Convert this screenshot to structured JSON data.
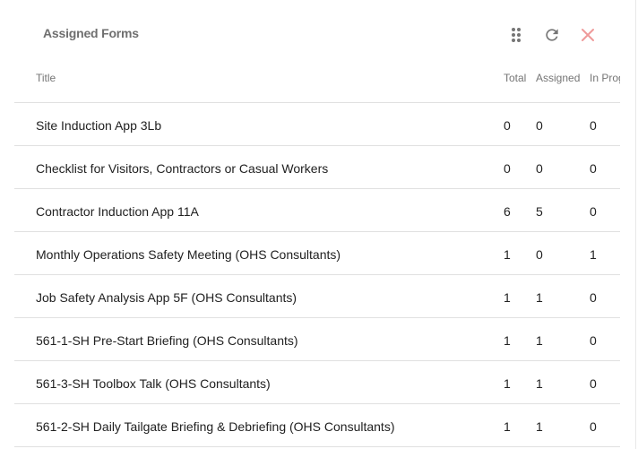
{
  "widget": {
    "title": "Assigned Forms",
    "icons": {
      "drag": "drag-handle-icon",
      "refresh": "refresh-icon",
      "close": "close-icon"
    },
    "colors": {
      "close": "#ef9a9a",
      "icon": "#757575"
    }
  },
  "table": {
    "columns": [
      "Title",
      "Total",
      "Assigned",
      "In Progress"
    ],
    "rows": [
      {
        "title": "Site Induction App 3Lb",
        "total": "0",
        "assigned": "0",
        "in_progress": "0"
      },
      {
        "title": "Checklist for Visitors, Contractors or Casual Workers",
        "total": "0",
        "assigned": "0",
        "in_progress": "0"
      },
      {
        "title": "Contractor Induction App 11A",
        "total": "6",
        "assigned": "5",
        "in_progress": "0"
      },
      {
        "title": "Monthly Operations Safety Meeting (OHS Consultants)",
        "total": "1",
        "assigned": "0",
        "in_progress": "1"
      },
      {
        "title": "Job Safety Analysis App 5F (OHS Consultants)",
        "total": "1",
        "assigned": "1",
        "in_progress": "0"
      },
      {
        "title": "561-1-SH Pre-Start Briefing (OHS Consultants)",
        "total": "1",
        "assigned": "1",
        "in_progress": "0"
      },
      {
        "title": "561-3-SH Toolbox Talk (OHS Consultants)",
        "total": "1",
        "assigned": "1",
        "in_progress": "0"
      },
      {
        "title": "561-2-SH Daily Tailgate Briefing & Debriefing (OHS Consultants)",
        "total": "1",
        "assigned": "1",
        "in_progress": "0"
      }
    ]
  }
}
